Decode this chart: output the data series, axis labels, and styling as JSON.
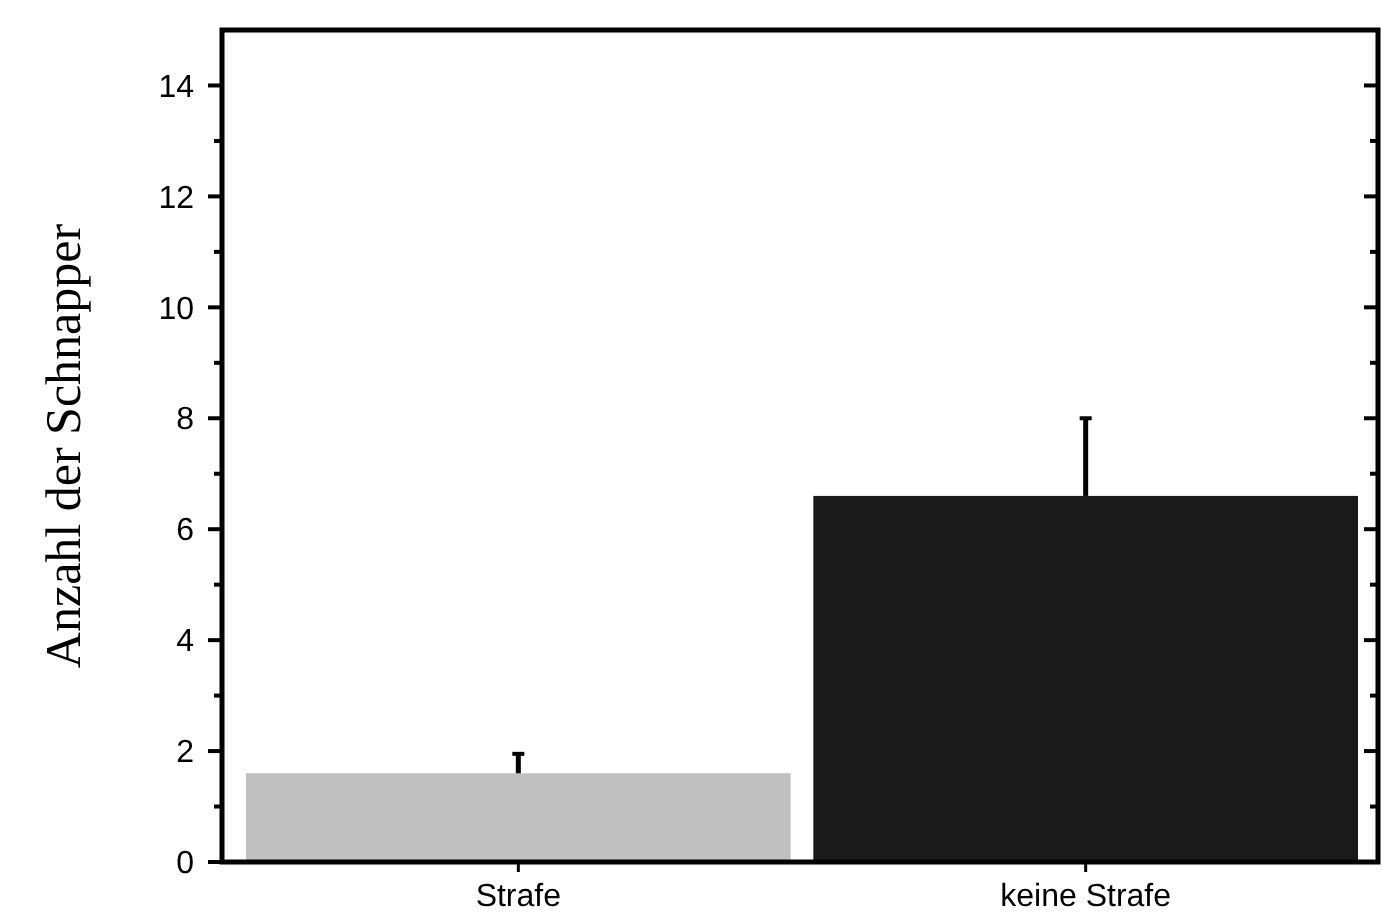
{
  "chart_data": {
    "type": "bar",
    "ylabel": "Anzahl der Schnapper",
    "categories": [
      "Strafe",
      "keine Strafe"
    ],
    "values": [
      1.6,
      6.6
    ],
    "colors": [
      "#c0c0c0",
      "#1a1a1a"
    ],
    "errors": [
      [
        1.6,
        1.95
      ],
      [
        6.6,
        8.0
      ]
    ],
    "ylim": [
      0,
      15
    ],
    "yticks": [
      0,
      {
        "value": 1,
        "label": null
      },
      2,
      {
        "value": 3,
        "label": null
      },
      4,
      {
        "value": 5,
        "label": null
      },
      6,
      {
        "value": 7,
        "label": null
      },
      8,
      {
        "value": 9,
        "label": null
      },
      10,
      {
        "value": 11,
        "label": null
      },
      12,
      {
        "value": 13,
        "label": null
      },
      14
    ],
    "grid": false
  }
}
